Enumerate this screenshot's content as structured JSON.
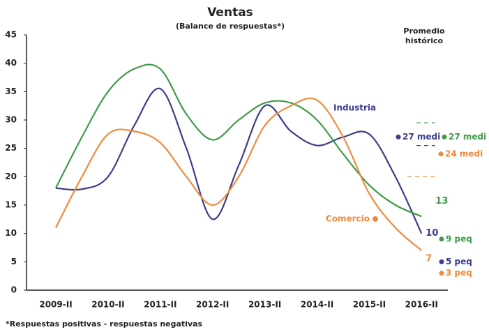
{
  "chart_data": {
    "type": "line",
    "title": "Ventas",
    "subtitle": "(Balance de respuestas*)",
    "footnote": "*Respuestas positivas - respuestas negativas",
    "reference_title": "Promedio histórico",
    "categories": [
      "2009-II",
      null,
      "2010-II",
      null,
      "2011-II",
      null,
      "2012-II",
      null,
      "2013-II",
      null,
      "2014-II",
      null,
      "2015-II",
      null,
      "2016-II"
    ],
    "series": [
      {
        "name": "Industria",
        "color": "#3c3c8c",
        "values": [
          18,
          17.8,
          20,
          29,
          35.5,
          25,
          12.5,
          22,
          32.5,
          28,
          25.5,
          27,
          27.5,
          20,
          10
        ],
        "end_label": "10"
      },
      {
        "color": "#3f9a48",
        "values": [
          18,
          27,
          35,
          39,
          39,
          31,
          26.5,
          30,
          33,
          33,
          30,
          24,
          18.5,
          15,
          13
        ],
        "end_label": "13"
      },
      {
        "name": "Comercio",
        "color": "#ef8a3c",
        "values": [
          11,
          20,
          27.5,
          28,
          26,
          20,
          15,
          20,
          29,
          32.5,
          33.5,
          27,
          17,
          11,
          7
        ],
        "end_label": "7"
      }
    ],
    "reference_dashes": [
      {
        "color": "#3f9a48",
        "value": 29.5
      },
      {
        "color": "#3c3c8c",
        "value": 25.5
      },
      {
        "color": "#ef8a3c",
        "value": 20
      }
    ],
    "reference_points": [
      {
        "label": "27 medi",
        "value": 27,
        "color": "#3c3c8c"
      },
      {
        "label": "27 medi",
        "value": 27,
        "color": "#3f9a48"
      },
      {
        "label": "24 medi",
        "value": 24,
        "color": "#ef8a3c"
      },
      {
        "label": "9 peq",
        "value": 9,
        "color": "#3f9a48"
      },
      {
        "label": "5 peq",
        "value": 5,
        "color": "#3c3c8c"
      },
      {
        "label": "3 peq",
        "value": 3,
        "color": "#ef8a3c"
      }
    ],
    "ylim": [
      0,
      45
    ],
    "yticks": [
      0,
      5,
      10,
      15,
      20,
      25,
      30,
      35,
      40,
      45
    ]
  }
}
